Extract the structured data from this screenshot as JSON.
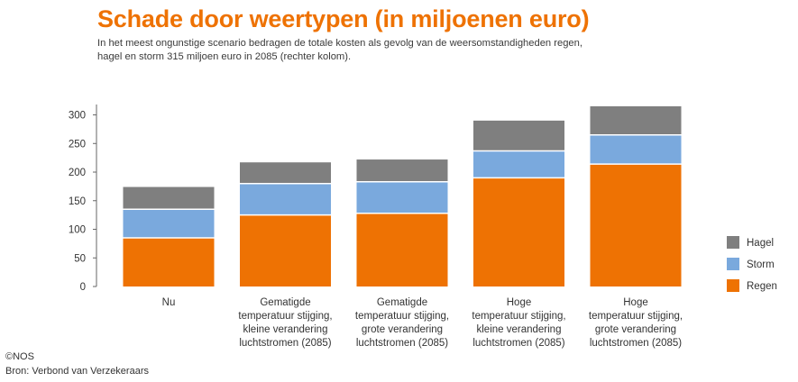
{
  "header": {
    "title": "Schade door weertypen (in miljoenen euro)",
    "subtitle": "In het meest ongunstige scenario bedragen de totale kosten als gevolg van de weersomstandigheden regen, hagel en storm 315 miljoen euro in 2085 (rechter kolom)."
  },
  "footer": {
    "copyright": "©NOS",
    "source": "Bron: Verbond van Verzekeraars"
  },
  "colors": {
    "accent": "#ee7203",
    "regen": "#ee7203",
    "storm": "#7aa9dd",
    "hagel": "#7f7f7f"
  },
  "chart_data": {
    "type": "bar",
    "stacked": true,
    "categories": [
      [
        "Nu"
      ],
      [
        "Gematigde",
        "temperatuur stijging,",
        "kleine verandering",
        "luchtstromen (2085)"
      ],
      [
        "Gematigde",
        "temperatuur stijging,",
        "grote verandering",
        "luchtstromen (2085)"
      ],
      [
        "Hoge",
        "temperatuur stijging,",
        "kleine verandering",
        "luchtstromen (2085)"
      ],
      [
        "Hoge",
        "temperatuur stijging,",
        "grote verandering",
        "luchtstromen (2085)"
      ]
    ],
    "series": [
      {
        "name": "Regen",
        "color": "#ee7203",
        "values": [
          85,
          125,
          128,
          190,
          214
        ]
      },
      {
        "name": "Storm",
        "color": "#7aa9dd",
        "values": [
          50,
          55,
          55,
          47,
          51
        ]
      },
      {
        "name": "Hagel",
        "color": "#7f7f7f",
        "values": [
          39,
          37,
          39,
          53,
          50
        ]
      }
    ],
    "ylim": [
      0,
      315
    ],
    "yticks": [
      0,
      50,
      100,
      150,
      200,
      250,
      300
    ],
    "grid": false,
    "legend": "right",
    "legend_order": [
      "Hagel",
      "Storm",
      "Regen"
    ]
  }
}
